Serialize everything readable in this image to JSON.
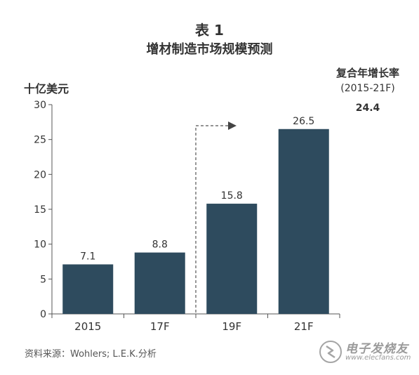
{
  "chart_data": {
    "type": "bar",
    "title": "表 1",
    "subtitle": "增材制造市场规模预测",
    "ylabel": "十亿美元",
    "categories": [
      "2015",
      "17F",
      "19F",
      "21F"
    ],
    "values": [
      7.1,
      8.8,
      15.8,
      26.5
    ],
    "value_labels": [
      "7.1",
      "8.8",
      "15.8",
      "26.5"
    ],
    "ylim": [
      0,
      30
    ],
    "yticks": [
      "0",
      "5",
      "10",
      "15",
      "20",
      "25",
      "30"
    ],
    "grid": false,
    "bar_color": "#2e4b5e",
    "annotation": {
      "label": "复合年增长率",
      "sublabel": "(2015-21F)",
      "value": "24.4"
    }
  },
  "source": "资料来源：Wohlers; L.E.K.分析",
  "watermark": {
    "text": "电子发烧友",
    "url": "www.elecfans.com"
  }
}
